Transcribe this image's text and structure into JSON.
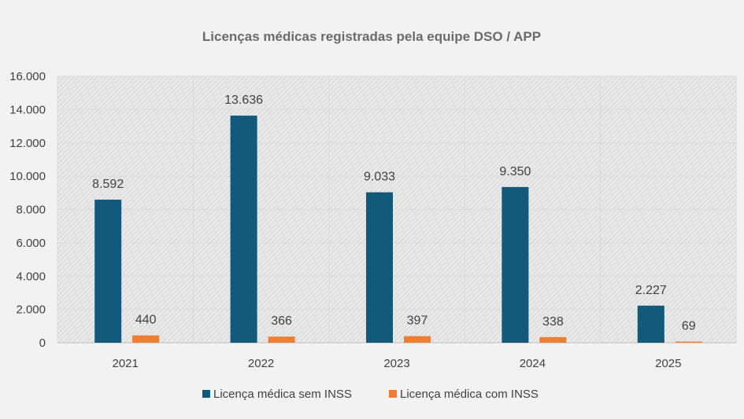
{
  "chart_data": {
    "type": "bar",
    "title": "Licenças médicas registradas pela equipe DSO / APP",
    "categories": [
      "2021",
      "2022",
      "2023",
      "2024",
      "2025"
    ],
    "series": [
      {
        "name": "Licença médica sem INSS",
        "color": "#12597a",
        "values": [
          8592,
          13636,
          9033,
          9350,
          2227
        ],
        "labels": [
          "8.592",
          "13.636",
          "9.033",
          "9.350",
          "2.227"
        ]
      },
      {
        "name": "Licença médica com INSS",
        "color": "#ed7d31",
        "values": [
          440,
          366,
          397,
          338,
          69
        ],
        "labels": [
          "440",
          "366",
          "397",
          "338",
          "69"
        ]
      }
    ],
    "ylim": [
      0,
      16000
    ],
    "yticks": [
      0,
      2000,
      4000,
      6000,
      8000,
      10000,
      12000,
      14000,
      16000
    ],
    "ytick_labels": [
      "0",
      "2.000",
      "4.000",
      "6.000",
      "8.000",
      "10.000",
      "12.000",
      "14.000",
      "16.000"
    ],
    "grid": true,
    "legend_position": "bottom",
    "xlabel": "",
    "ylabel": ""
  }
}
